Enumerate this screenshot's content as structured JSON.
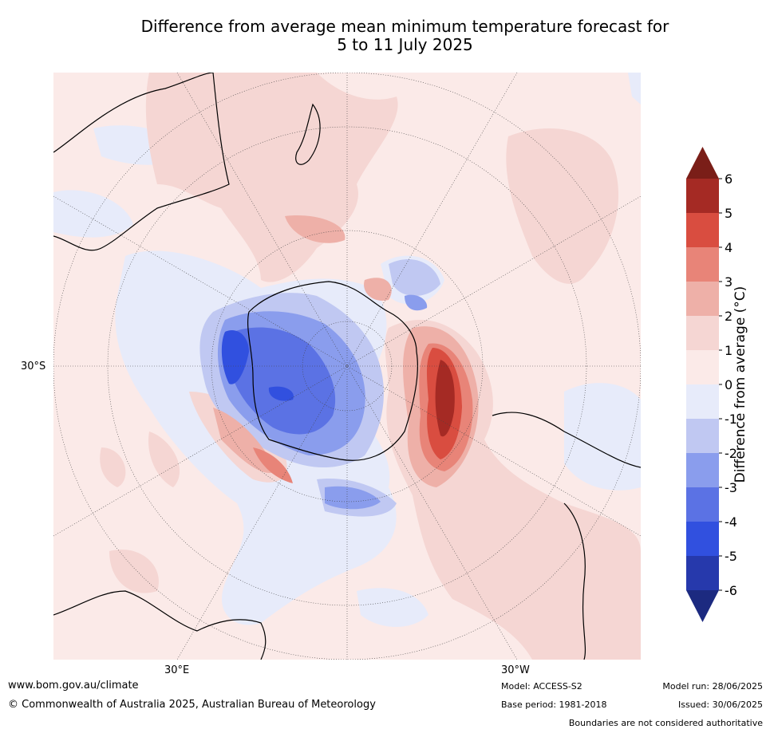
{
  "title_line1": "Difference from average mean minimum temperature forecast for",
  "title_line2": "5 to 11 July 2025",
  "map_labels": {
    "lat_30s": "30°S",
    "lon_30e": "30°E",
    "lon_30w": "30°W"
  },
  "colorbar": {
    "label": "Difference from average (°C)",
    "ticks": [
      "6",
      "5",
      "4",
      "3",
      "2",
      "1",
      "0",
      "-1",
      "-2",
      "-3",
      "-4",
      "-5",
      "-6"
    ],
    "colors": [
      "#7a1e18",
      "#a52a24",
      "#d94d40",
      "#e88478",
      "#eeb0a8",
      "#f5d6d3",
      "#fbeae8",
      "#e7ebfa",
      "#c0c8f2",
      "#8a9ded",
      "#5b72e4",
      "#3150df",
      "#2639ac",
      "#1c2a80"
    ]
  },
  "footer": {
    "website": "www.bom.gov.au/climate",
    "copyright": "© Commonwealth of Australia 2025, Australian Bureau of Meteorology",
    "model": "Model: ACCESS-S2",
    "base_period": "Base period: 1981-2018",
    "model_run": "Model run: 28/06/2025",
    "issued": "Issued: 30/06/2025",
    "disclaimer": "Boundaries are not considered authoritative"
  }
}
